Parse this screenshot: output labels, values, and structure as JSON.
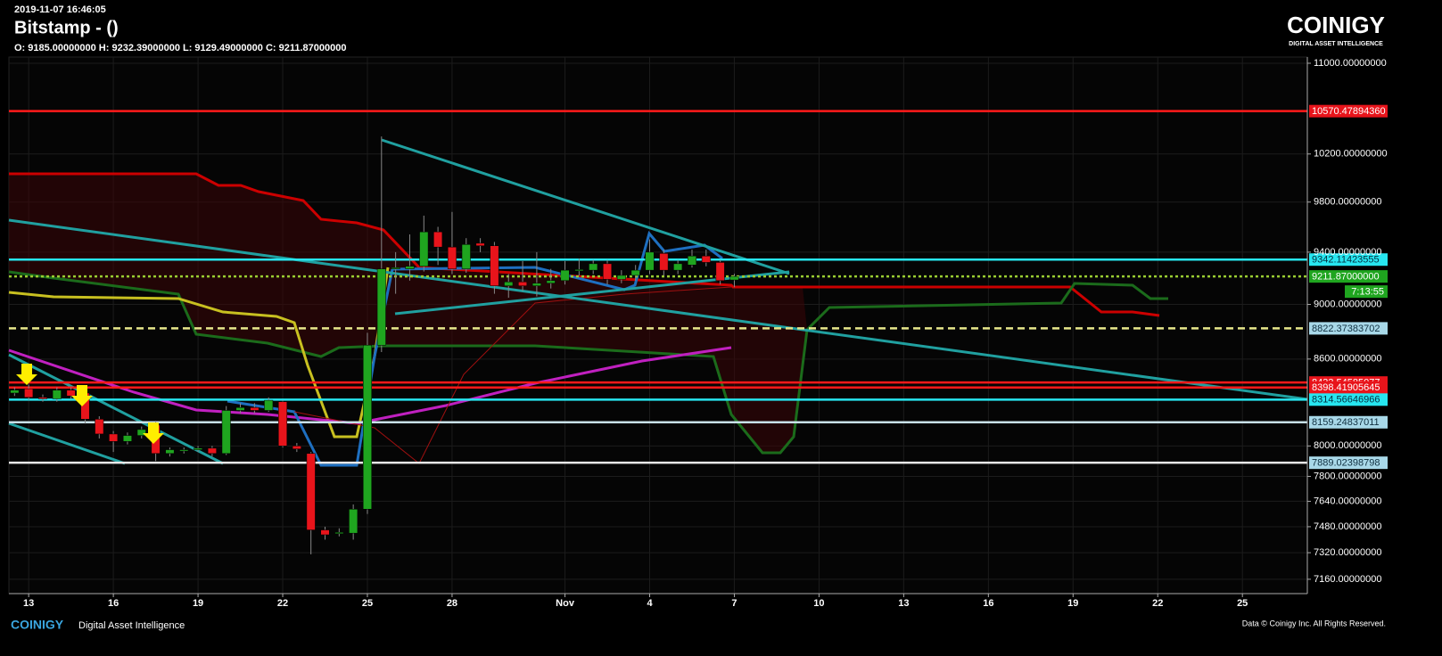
{
  "chart_data": {
    "type": "candlestick",
    "subtitle": "2019-11-07 16:46:05",
    "title": "Bitstamp -  ()",
    "ohlc_text": "O: 9185.00000000 H: 9232.39000000 L: 9129.49000000 C: 9211.87000000",
    "log_scale": true,
    "grid": true,
    "up_color": "#1fa51f",
    "down_color": "#e8141b",
    "ylim": [
      7075,
      11057
    ],
    "yticks": [
      {
        "value": 11000,
        "label": "11000.00000000"
      },
      {
        "value": 10200,
        "label": "10200.00000000"
      },
      {
        "value": 9800,
        "label": "9800.00000000"
      },
      {
        "value": 9400,
        "label": "9400.00000000"
      },
      {
        "value": 9000,
        "label": "9000.00000000"
      },
      {
        "value": 8600,
        "label": "8600.00000000"
      },
      {
        "value": 8000,
        "label": "8000.00000000"
      },
      {
        "value": 7800,
        "label": "7800.00000000"
      },
      {
        "value": 7640,
        "label": "7640.00000000"
      },
      {
        "value": 7480,
        "label": "7480.00000000"
      },
      {
        "value": 7320,
        "label": "7320.00000000"
      },
      {
        "value": 7160,
        "label": "7160.00000000"
      }
    ],
    "xlim": [
      -0.7,
      45.3
    ],
    "xticks": [
      {
        "value": 0,
        "label": "13"
      },
      {
        "value": 3,
        "label": "16"
      },
      {
        "value": 6,
        "label": "19"
      },
      {
        "value": 9,
        "label": "22"
      },
      {
        "value": 12,
        "label": "25"
      },
      {
        "value": 15,
        "label": "28"
      },
      {
        "value": 19,
        "label": "Nov"
      },
      {
        "value": 22,
        "label": "4"
      },
      {
        "value": 25,
        "label": "7"
      },
      {
        "value": 28,
        "label": "10"
      },
      {
        "value": 31,
        "label": "13"
      },
      {
        "value": 34,
        "label": "16"
      },
      {
        "value": 37,
        "label": "19"
      },
      {
        "value": 40,
        "label": "22"
      },
      {
        "value": 43,
        "label": "25"
      }
    ],
    "x": [
      -0.5,
      0,
      0.5,
      1,
      1.5,
      2,
      2.5,
      3,
      3.5,
      4,
      4.5,
      5,
      5.5,
      6,
      6.5,
      7,
      7.5,
      8,
      8.5,
      9,
      9.5,
      10,
      10.5,
      11,
      11.5,
      12,
      12.5,
      13,
      13.5,
      14,
      14.5,
      15,
      15.5,
      16,
      16.5,
      17,
      17.5,
      18,
      18.5,
      19,
      19.5,
      20,
      20.5,
      21,
      21.5,
      22,
      22.5,
      23,
      23.5,
      24,
      24.5,
      25
    ],
    "open": [
      8360,
      8390,
      8330,
      8320,
      8380,
      8360,
      8180,
      8080,
      8030,
      8070,
      8140,
      7950,
      7970,
      7975,
      7985,
      7950,
      8240,
      8260,
      8240,
      8300,
      8000,
      7950,
      7460,
      7440,
      7440,
      7590,
      8700,
      9270,
      9270,
      9290,
      9560,
      9440,
      9270,
      9470,
      9450,
      9140,
      9170,
      9140,
      9160,
      9180,
      9260,
      9260,
      9310,
      9190,
      9220,
      9260,
      9390,
      9260,
      9300,
      9370,
      9320,
      9185
    ],
    "high": [
      8400,
      8420,
      8350,
      8400,
      8400,
      8380,
      8200,
      8100,
      8090,
      8130,
      8170,
      7990,
      7990,
      8000,
      8000,
      8270,
      8290,
      8290,
      8330,
      8310,
      8020,
      7960,
      7480,
      7470,
      7620,
      8790,
      10350,
      9400,
      9540,
      9690,
      9600,
      9720,
      9510,
      9510,
      9480,
      9230,
      9330,
      9400,
      9270,
      9330,
      9350,
      9340,
      9340,
      9260,
      9300,
      9500,
      9420,
      9340,
      9420,
      9420,
      9340,
      9232.39
    ],
    "low": [
      8340,
      8310,
      8300,
      8300,
      8320,
      8150,
      8050,
      7960,
      8010,
      8050,
      7900,
      7930,
      7950,
      7960,
      7930,
      7940,
      8220,
      8220,
      8230,
      7990,
      7960,
      7310,
      7400,
      7420,
      7400,
      7560,
      8650,
      9080,
      9180,
      9250,
      9300,
      9230,
      9240,
      9400,
      9080,
      9050,
      9100,
      9060,
      9120,
      9150,
      9220,
      9230,
      9150,
      9160,
      9180,
      9230,
      9220,
      9230,
      9280,
      9290,
      9150,
      9129.49
    ],
    "close": [
      8380,
      8330,
      8320,
      8380,
      8340,
      8180,
      8080,
      8030,
      8070,
      8110,
      7950,
      7975,
      7975,
      7985,
      7950,
      8240,
      8260,
      8240,
      8310,
      8000,
      7980,
      7460,
      7430,
      7445,
      7590,
      8700,
      9270,
      9280,
      9290,
      9560,
      9440,
      9270,
      9460,
      9450,
      9140,
      9170,
      9140,
      9160,
      9180,
      9260,
      9265,
      9310,
      9190,
      9220,
      9260,
      9400,
      9260,
      9310,
      9370,
      9320,
      9180,
      9211.87
    ],
    "levels": [
      {
        "value": 10570.4789436,
        "label": "10570.47894360",
        "color": "#ff1a1a",
        "label_color": "#e8141b",
        "text_color": "#ffffff",
        "dash": "none"
      },
      {
        "value": 9342.11423555,
        "label": "9342.11423555",
        "color": "#27e6f0",
        "label_color": "#27e6f0",
        "text_color": "#003040",
        "dash": "none"
      },
      {
        "value": 9211.87,
        "label": "9211.87000000",
        "color": "#9acd32",
        "label_color": "#1fa51f",
        "text_color": "#ffffff",
        "dash": "3 3"
      },
      {
        "value": 8822.37383702,
        "label": "8822.37383702",
        "color": "#e6e68a",
        "label_color": "#a8d8e8",
        "text_color": "#103040",
        "dash": "8 5"
      },
      {
        "value": 8433.54585077,
        "label": "8433.54585077",
        "color": "#ff1a1a",
        "label_color": "#e8141b",
        "text_color": "#ffffff",
        "dash": "none"
      },
      {
        "value": 8398.41905645,
        "label": "8398.41905645",
        "color": "#ff1a1a",
        "label_color": "#e8141b",
        "text_color": "#ffffff",
        "dash": "none"
      },
      {
        "value": 8314.56646966,
        "label": "8314.56646966",
        "color": "#27e6f0",
        "label_color": "#27e6f0",
        "text_color": "#003040",
        "dash": "none"
      },
      {
        "value": 8159.24837011,
        "label": "8159.24837011",
        "color": "#c8e0e8",
        "label_color": "#a8d8e8",
        "text_color": "#103040",
        "dash": "none"
      },
      {
        "value": 7889.02398798,
        "label": "7889.02398798",
        "color": "#e8e8e8",
        "label_color": "#a8d8e8",
        "text_color": "#103040",
        "dash": "none"
      }
    ],
    "countdown": "7:13:55"
  },
  "branding": {
    "logo": "COINIGY",
    "tagline": "DIGITAL ASSET INTELLIGENCE",
    "footer_logo": "COINIGY",
    "footer_tagline": "Digital Asset Intelligence",
    "copyright": "Data © Coinigy Inc.  All Rights Reserved."
  }
}
